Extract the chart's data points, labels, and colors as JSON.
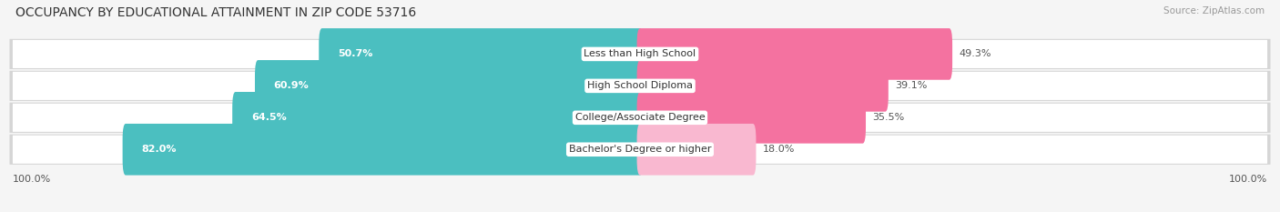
{
  "title": "OCCUPANCY BY EDUCATIONAL ATTAINMENT IN ZIP CODE 53716",
  "source": "Source: ZipAtlas.com",
  "categories": [
    "Less than High School",
    "High School Diploma",
    "College/Associate Degree",
    "Bachelor's Degree or higher"
  ],
  "owner_values": [
    50.7,
    60.9,
    64.5,
    82.0
  ],
  "renter_values": [
    49.3,
    39.1,
    35.5,
    18.0
  ],
  "owner_color": "#4BBFC0",
  "renter_color": "#F472A0",
  "renter_color_light": "#F9B8D0",
  "row_bg_color": "#e8e8e8",
  "fig_bg_color": "#f5f5f5",
  "title_fontsize": 10,
  "label_fontsize": 8,
  "tick_fontsize": 8,
  "legend_fontsize": 8,
  "source_fontsize": 7.5,
  "x_axis_label": "100.0%"
}
